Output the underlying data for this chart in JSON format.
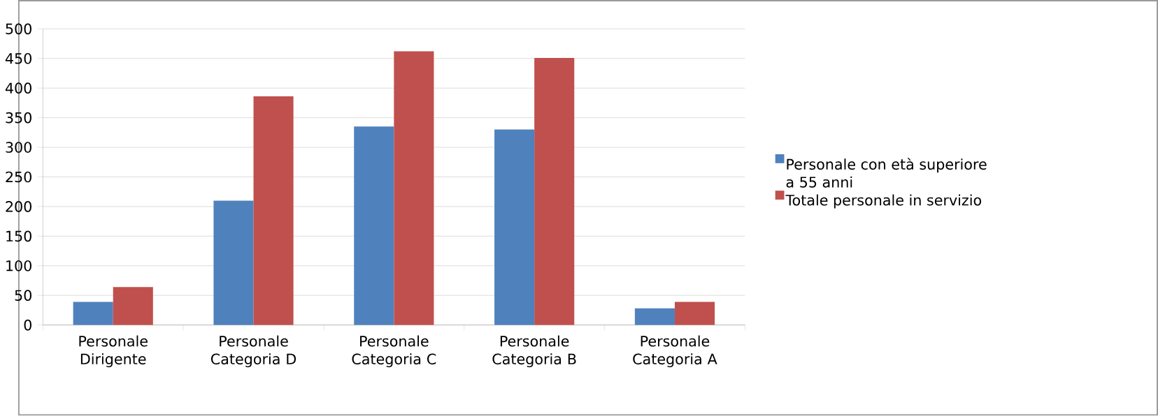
{
  "chart_data": {
    "type": "bar",
    "categories": [
      "Personale Dirigente",
      "Personale Categoria D",
      "Personale Categoria C",
      "Personale Categoria B",
      "Personale Categoria A"
    ],
    "series": [
      {
        "name": "Personale con età superiore a 55 anni",
        "color": "#4f81bd",
        "values": [
          39,
          210,
          335,
          330,
          28
        ]
      },
      {
        "name": "Totale personale in servizio",
        "color": "#c0504d",
        "values": [
          64,
          386,
          462,
          451,
          39
        ]
      }
    ],
    "ylim": [
      0,
      500
    ],
    "yticks": [
      0,
      50,
      100,
      150,
      200,
      250,
      300,
      350,
      400,
      450,
      500
    ],
    "grid": "y",
    "legend": "right"
  }
}
